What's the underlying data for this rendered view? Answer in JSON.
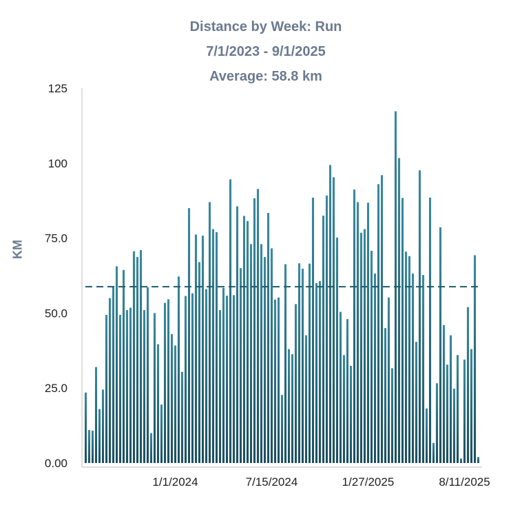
{
  "chart_data": {
    "type": "bar",
    "title": "Distance by Week: Run",
    "subtitle": "7/1/2023 - 9/1/2025",
    "average_label": "Average: 58.8 km",
    "average": 58.8,
    "ylabel": "KM",
    "xlabel": "",
    "ylim": [
      0,
      125
    ],
    "yticks": [
      "0.00",
      "25.0",
      "50.0",
      "75.0",
      "100",
      "125"
    ],
    "ytick_values": [
      0,
      25,
      50,
      75,
      100,
      125
    ],
    "xticks": [
      "1/1/2024",
      "7/15/2024",
      "1/27/2025",
      "8/11/2025"
    ],
    "xtick_index": [
      26,
      54,
      82,
      110
    ],
    "colors": {
      "bar_top": "#3a8a9e",
      "bar_bottom": "#1b4f60",
      "average_line": "#1f5a6a",
      "axis": "#bdbdbd"
    },
    "values": [
      23.5,
      11,
      10.8,
      32,
      18,
      24.5,
      49.4,
      55,
      59,
      65.6,
      49.4,
      64.4,
      51,
      51.8,
      70.6,
      68.7,
      71,
      51,
      58.6,
      10,
      50,
      39.6,
      19.5,
      53.4,
      54.6,
      43,
      39.2,
      62.2,
      30.4,
      55.7,
      85,
      56.6,
      76.2,
      67,
      75.8,
      58,
      87,
      78,
      77,
      51,
      58.4,
      55.8,
      94.6,
      56,
      85.6,
      65,
      82.4,
      80.7,
      73,
      88.3,
      91.4,
      73,
      68.7,
      83.4,
      71.6,
      54.5,
      55.2,
      22.7,
      66.3,
      38,
      36.3,
      53,
      66.6,
      64.8,
      42.6,
      66.5,
      88.5,
      60,
      60.7,
      82.5,
      89.2,
      99.4,
      95.3,
      75.2,
      50.4,
      36,
      48,
      32.4,
      91.2,
      87,
      76.8,
      78,
      86.8,
      70.8,
      63.2,
      93,
      96,
      45,
      55.2,
      31.6,
      117.3,
      101.7,
      88.4,
      70.5,
      69,
      63.2,
      40.4,
      97.6,
      62.7,
      18.2,
      88.5,
      6.7,
      26.6,
      78.6,
      46,
      32.8,
      42.6,
      24.8,
      36,
      1.5,
      34.5,
      52,
      38,
      69.3,
      2
    ]
  }
}
